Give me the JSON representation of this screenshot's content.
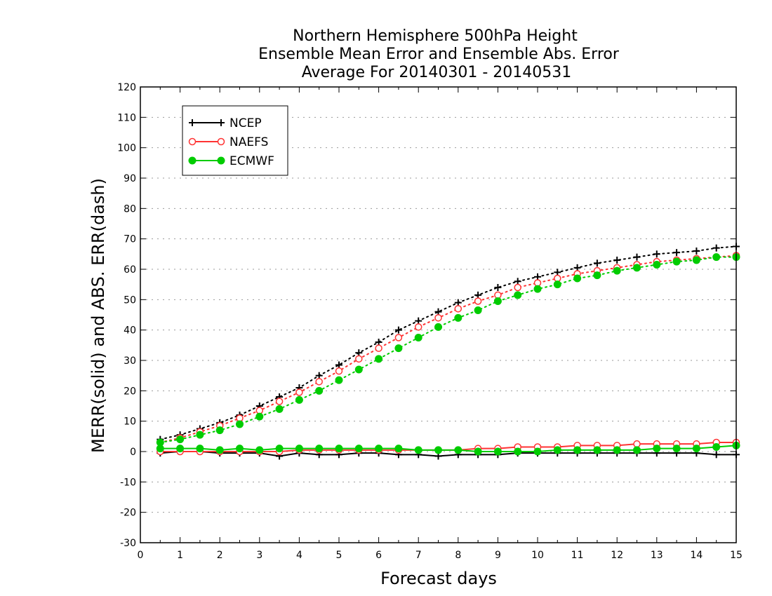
{
  "chart_data": {
    "type": "line",
    "title": [
      "Northern Hemisphere 500hPa Height",
      "Ensemble Mean Error and Ensemble Abs. Error",
      "Average For 20140301 - 20140531"
    ],
    "xlabel": "Forecast days",
    "ylabel": "MERR(solid) and ABS. ERR(dash)",
    "xlim": [
      0,
      15
    ],
    "ylim": [
      -30,
      120
    ],
    "xticks": [
      0,
      1,
      2,
      3,
      4,
      5,
      6,
      7,
      8,
      9,
      10,
      11,
      12,
      13,
      14,
      15
    ],
    "yticks": [
      -30,
      -20,
      -10,
      0,
      10,
      20,
      30,
      40,
      50,
      60,
      70,
      80,
      90,
      100,
      110,
      120
    ],
    "grid": true,
    "legend_position": "top-left",
    "x": [
      0.5,
      1,
      1.5,
      2,
      2.5,
      3,
      3.5,
      4,
      4.5,
      5,
      5.5,
      6,
      6.5,
      7,
      7.5,
      8,
      8.5,
      9,
      9.5,
      10,
      10.5,
      11,
      11.5,
      12,
      12.5,
      13,
      13.5,
      14,
      14.5,
      15
    ],
    "series": [
      {
        "name": "NCEP",
        "color": "#000000",
        "marker": "plus",
        "abs_err": [
          4,
          5.5,
          7.5,
          9.5,
          12,
          15,
          18,
          21,
          25,
          28.5,
          32.5,
          36,
          40,
          43,
          46,
          49,
          51.5,
          54,
          56,
          57.5,
          59,
          60.5,
          62,
          63,
          64,
          65,
          65.5,
          66,
          67,
          67.5
        ],
        "mean_err": [
          -0.5,
          0,
          0,
          -0.5,
          -0.5,
          -0.5,
          -1.5,
          -0.5,
          -1,
          -1,
          -0.5,
          -0.5,
          -1,
          -1,
          -1.5,
          -1,
          -1,
          -1,
          -0.5,
          -0.5,
          -0.5,
          -0.5,
          -0.5,
          -0.5,
          -0.5,
          -0.5,
          -0.5,
          -0.5,
          -1,
          -1
        ]
      },
      {
        "name": "NAEFS",
        "color": "#ff3333",
        "marker": "open-circle",
        "abs_err": [
          3,
          4.5,
          6.5,
          8.5,
          11,
          13.5,
          16.5,
          19.5,
          23,
          26.5,
          30.5,
          34,
          37.5,
          41,
          44,
          47,
          49.5,
          51.5,
          54,
          55.5,
          57,
          58.5,
          59.5,
          60.5,
          61.5,
          62.5,
          63,
          63.5,
          64,
          64.5
        ],
        "mean_err": [
          0,
          0,
          0,
          0,
          0,
          0,
          0,
          0.5,
          0.5,
          0.5,
          0.5,
          0.5,
          0.5,
          0.5,
          0.5,
          0.5,
          1,
          1,
          1.5,
          1.5,
          1.5,
          2,
          2,
          2,
          2.5,
          2.5,
          2.5,
          2.5,
          3,
          3
        ]
      },
      {
        "name": "ECMWF",
        "color": "#00cc00",
        "marker": "filled-circle",
        "abs_err": [
          3,
          4,
          5.5,
          7,
          9,
          11.5,
          14,
          17,
          20,
          23.5,
          27,
          30.5,
          34,
          37.5,
          41,
          44,
          46.5,
          49.5,
          51.5,
          53.5,
          55,
          57,
          58,
          59.5,
          60.5,
          61.5,
          62.5,
          63,
          64,
          64
        ],
        "mean_err": [
          1,
          1,
          1,
          0.5,
          1,
          0.5,
          1,
          1,
          1,
          1,
          1,
          1,
          1,
          0.5,
          0.5,
          0.5,
          0,
          0,
          0,
          0,
          0.5,
          0.5,
          0.5,
          0.5,
          0.5,
          1,
          1,
          1,
          1.5,
          2
        ]
      }
    ]
  }
}
